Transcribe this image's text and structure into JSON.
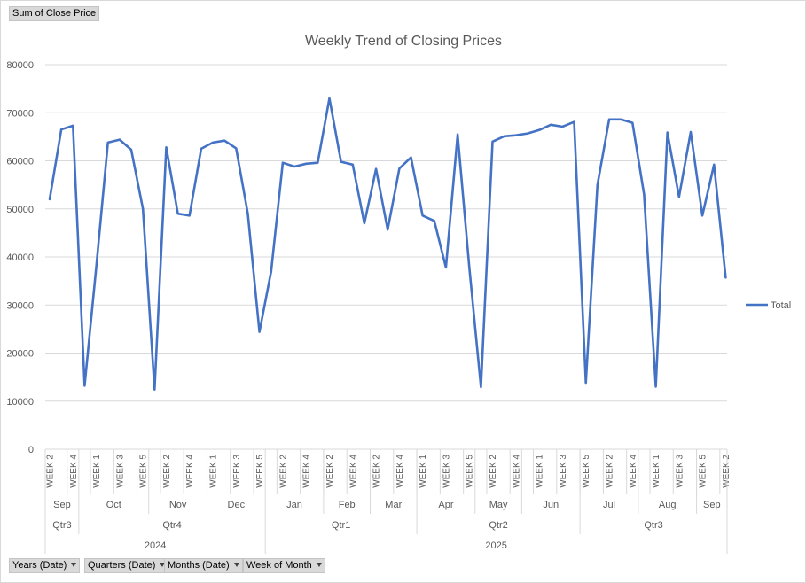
{
  "field_buttons": {
    "value_field": "Sum of Close Price",
    "axis_fields": [
      "Years (Date)",
      "Quarters (Date)",
      "Months (Date)",
      "Week of Month"
    ]
  },
  "chart_data": {
    "type": "line",
    "title": "Weekly Trend of Closing Prices",
    "xlabel": "",
    "ylabel": "",
    "ylim": [
      0,
      80000
    ],
    "yticks": [
      0,
      10000,
      20000,
      30000,
      40000,
      50000,
      60000,
      70000,
      80000
    ],
    "grid": true,
    "legend": "right",
    "colors": {
      "line": "#4472c4",
      "grid": "#d9d9d9",
      "axis_text": "#595959"
    },
    "series": [
      {
        "name": "Total",
        "values": [
          52000,
          66500,
          67300,
          13200,
          38000,
          63800,
          64400,
          62300,
          50000,
          12400,
          62800,
          49000,
          48600,
          62500,
          63800,
          64200,
          62600,
          49000,
          24400,
          37000,
          59600,
          58800,
          59400,
          59600,
          73000,
          59800,
          59200,
          47000,
          58300,
          45700,
          58400,
          60700,
          48600,
          47500,
          37800,
          65500,
          38000,
          12900,
          64000,
          65100,
          65300,
          65700,
          66400,
          67500,
          67100,
          68100,
          13800,
          55000,
          68600,
          68600,
          67900,
          53000,
          13000,
          65900,
          52500,
          66000,
          48600,
          59200,
          35700
        ]
      }
    ],
    "x_levels": {
      "weeks": [
        "WEEK 2",
        "WEEK 4",
        "WEEK 1",
        "WEEK 3",
        "WEEK 5",
        "WEEK 2",
        "WEEK 4",
        "WEEK 1",
        "WEEK 3",
        "WEEK 5",
        "WEEK 2",
        "WEEK 4",
        "WEEK 2",
        "WEEK 4",
        "WEEK 2",
        "WEEK 4",
        "WEEK 1",
        "WEEK 3",
        "WEEK 5",
        "WEEK 2",
        "WEEK 4",
        "WEEK 1",
        "WEEK 3",
        "WEEK 5",
        "WEEK 2",
        "WEEK 4",
        "WEEK 1",
        "WEEK 3",
        "WEEK 5",
        "WEEK 2"
      ],
      "months": [
        {
          "label": "Sep",
          "points": 3
        },
        {
          "label": "Oct",
          "points": 6
        },
        {
          "label": "Nov",
          "points": 5
        },
        {
          "label": "Dec",
          "points": 5
        },
        {
          "label": "Jan",
          "points": 5
        },
        {
          "label": "Feb",
          "points": 4
        },
        {
          "label": "Mar",
          "points": 4
        },
        {
          "label": "Apr",
          "points": 5
        },
        {
          "label": "May",
          "points": 4
        },
        {
          "label": "Jun",
          "points": 5
        },
        {
          "label": "Jul",
          "points": 5
        },
        {
          "label": "Aug",
          "points": 5
        },
        {
          "label": "Sep",
          "points": 3
        }
      ],
      "quarters": [
        {
          "label": "Qtr3",
          "points": 3
        },
        {
          "label": "Qtr4",
          "points": 16
        },
        {
          "label": "Qtr1",
          "points": 13
        },
        {
          "label": "Qtr2",
          "points": 14
        },
        {
          "label": "Qtr3",
          "points": 13
        }
      ],
      "years": [
        {
          "label": "2024",
          "points": 19
        },
        {
          "label": "2025",
          "points": 40
        }
      ]
    }
  }
}
